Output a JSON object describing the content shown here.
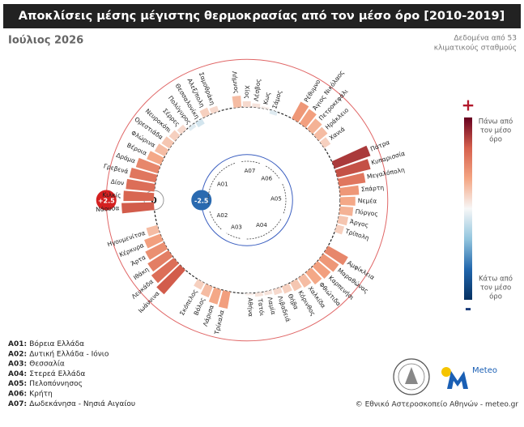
{
  "chart_data": {
    "type": "radial_bar",
    "title": "Αποκλίσεις μέσης μέγιστης θερμοκρασίας από τον μέσο όρο [2010-2019]",
    "subtitle": "Ιούλιος 2026",
    "note": [
      "Δεδομένα από 53",
      "κλιματικούς σταθμούς"
    ],
    "rlim": [
      -2.5,
      2.5
    ],
    "rticks": [
      {
        "value": 2.5,
        "label": "+2.5"
      },
      0,
      -2.5
    ],
    "colorscale": [
      "#053061",
      "#2166ac",
      "#92c5de",
      "#f7f7f7",
      "#f4a582",
      "#d6604d",
      "#67001f"
    ],
    "colorbar": {
      "top_symbol": "+",
      "bottom_symbol": "-",
      "top_text": [
        "Πάνω από",
        "τον μέσο",
        "όρο"
      ],
      "bottom_text": [
        "Κάτω από",
        "τον μέσο",
        "όρο"
      ]
    },
    "groups": [
      {
        "code": "A01",
        "name": "Βόρεια Ελλάδα",
        "stations": [
          "Σαμοθράκη",
          "Αλεξ/πολη",
          "Θεσσαλονίκη",
          "Πολύγυρος",
          "Σέρρες",
          "Νευροκόπι",
          "Ορεστιάδα",
          "Φλώρινα",
          "Βέροια",
          "Δράμα",
          "Γρεβενά",
          "Δίον",
          "Κιλκίς",
          "Νάουσα"
        ],
        "values": [
          0.3,
          0.4,
          -0.3,
          -0.2,
          0.3,
          0.4,
          0.5,
          0.6,
          0.8,
          1.2,
          1.4,
          1.5,
          1.6,
          1.7
        ]
      },
      {
        "code": "A02",
        "name": "Δυτική Ελλάδα - Ιόνιο",
        "stations": [
          "Ηγουμενίτσα",
          "Κέρκυρα",
          "Άρτα",
          "Ιθάκη",
          "Λευκάδα",
          "Ιωάννινα"
        ],
        "values": [
          0.6,
          0.9,
          1.1,
          1.3,
          1.5,
          1.7
        ]
      },
      {
        "code": "A03",
        "name": "Θεσσαλία",
        "stations": [
          "Σκόπελος",
          "Βόλος",
          "Λάρισα",
          "Τρίκαλα"
        ],
        "values": [
          0.4,
          0.6,
          0.8,
          0.9
        ]
      },
      {
        "code": "A04",
        "name": "Στερεά Ελλάδα",
        "stations": [
          "Αθήνα",
          "Τατόι",
          "Λαμία",
          "Λιβαδειά",
          "Θήβα",
          "Κόρινθος",
          "Χαλκίδα",
          "Φθιώτιδα",
          "Καρπενήσι",
          "Μαραθώνας",
          "Αμφίκλεια"
        ],
        "values": [
          0.1,
          0.2,
          0.2,
          0.3,
          0.4,
          0.5,
          0.6,
          0.8,
          0.9,
          1.0,
          1.2
        ]
      },
      {
        "code": "A05",
        "name": "Πελοπόννησος",
        "stations": [
          "Τρίπολη",
          "Άργος",
          "Πύργος",
          "Νεμέα",
          "Σπάρτη",
          "Μεγαλόπολη",
          "Κυπαρισσία",
          "Πάτρα"
        ],
        "values": [
          0.4,
          0.5,
          0.7,
          0.8,
          1.0,
          1.4,
          1.8,
          2.0
        ]
      },
      {
        "code": "A06",
        "name": "Κρήτη",
        "stations": [
          "Χανιά",
          "Ηράκλειο",
          "Πετροκεφάλι",
          "Άγιος Νικόλαος",
          "Ρέθυμνο"
        ],
        "values": [
          0.4,
          0.6,
          0.7,
          0.9,
          1.0
        ]
      },
      {
        "code": "A07",
        "name": "Δωδεκάνησα - Νησιά Αιγαίου",
        "stations": [
          "Σάμος",
          "Κως",
          "Λέσβος",
          "Χίος",
          "Λήμνος"
        ],
        "values": [
          -0.2,
          0.1,
          0.2,
          0.3,
          0.6
        ]
      }
    ],
    "logo_text": "Meteo",
    "credit": "© Εθνικό Αστεροσκοπείο Αθηνών - meteo.gr"
  }
}
